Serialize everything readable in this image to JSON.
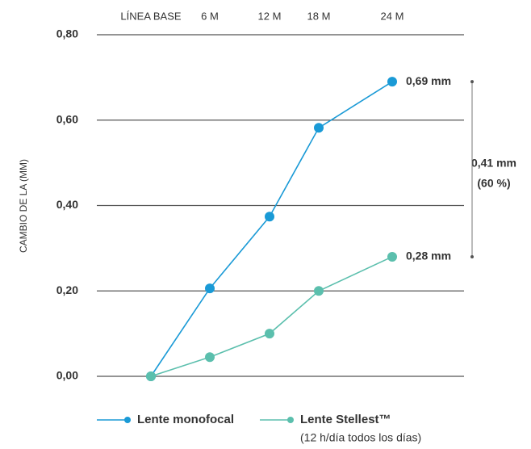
{
  "chart_data": {
    "type": "line",
    "categories": [
      "LÍNEA BASE",
      "6 M",
      "12 M",
      "18 M",
      "24 M"
    ],
    "y_label": "CAMBIO DE LA (MM)",
    "ylim": [
      0,
      0.8
    ],
    "yticks": [
      {
        "value": 0,
        "label": "0,00"
      },
      {
        "value": 0.2,
        "label": "0,20"
      },
      {
        "value": 0.4,
        "label": "0,40"
      },
      {
        "value": 0.6,
        "label": "0,60"
      },
      {
        "value": 0.8,
        "label": "0,80"
      }
    ],
    "grid": true,
    "series": [
      {
        "name": "Lente monofocal",
        "color": "#1a9ad6",
        "values": [
          0,
          0.206,
          0.374,
          0.582,
          0.69
        ],
        "value_labels": [
          null,
          null,
          null,
          null,
          "0,69 mm"
        ]
      },
      {
        "name": "Lente Stellest™",
        "color": "#5bbfad",
        "values": [
          0,
          0.045,
          0.1,
          0.2,
          0.28
        ],
        "value_labels": [
          null,
          null,
          null,
          null,
          "0,28 mm"
        ],
        "legend_note": "(12 h/día todos los días)"
      }
    ],
    "annotations": [
      "0,41 mm",
      "(60 %)"
    ]
  }
}
